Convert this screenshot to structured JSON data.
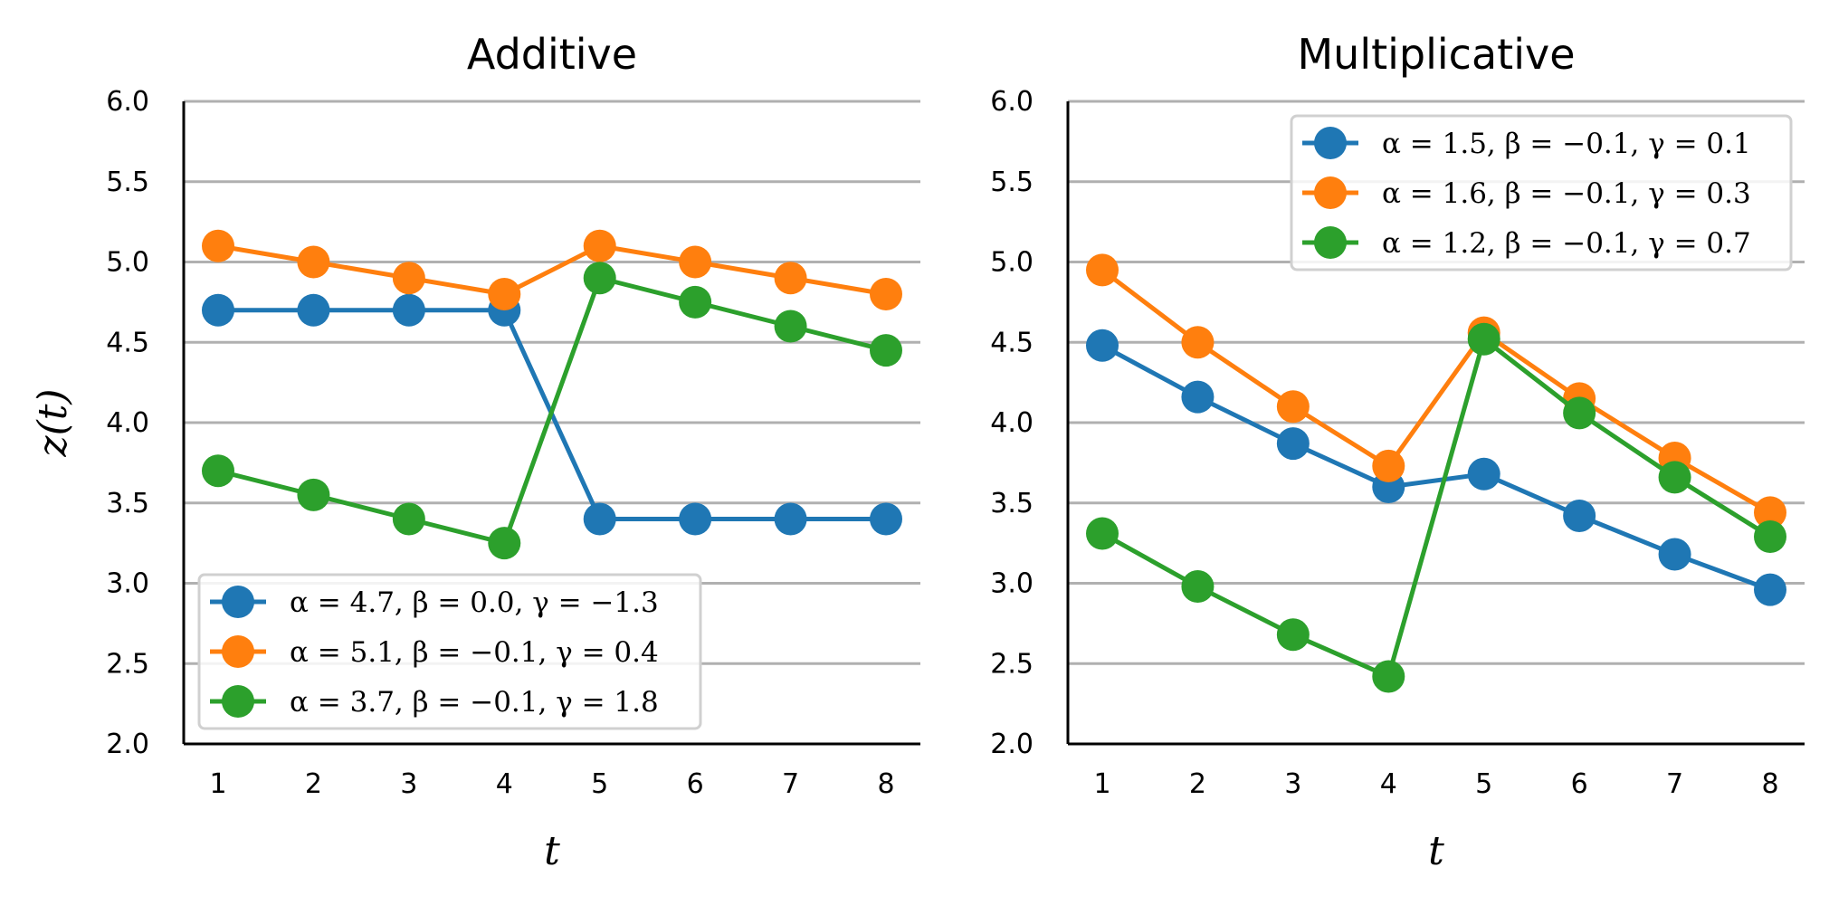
{
  "chart_data": [
    {
      "type": "line",
      "title": "Additive",
      "xlabel": "t",
      "ylabel": "z(t)",
      "x": [
        1,
        2,
        3,
        4,
        5,
        6,
        7,
        8
      ],
      "xticks": [
        "1",
        "2",
        "3",
        "4",
        "5",
        "6",
        "7",
        "8"
      ],
      "ylim": [
        2.0,
        6.0
      ],
      "yticks": [
        "2.0",
        "2.5",
        "3.0",
        "3.5",
        "4.0",
        "4.5",
        "5.0",
        "5.5",
        "6.0"
      ],
      "grid": "horizontal",
      "legend_position": "lower-left",
      "series": [
        {
          "name": "α = 4.7, β = 0.0, γ = −1.3",
          "color": "#1f77b4",
          "values": [
            4.7,
            4.7,
            4.7,
            4.7,
            3.4,
            3.4,
            3.4,
            3.4
          ]
        },
        {
          "name": "α = 5.1, β = −0.1, γ = 0.4",
          "color": "#ff7f0e",
          "values": [
            5.1,
            5.0,
            4.9,
            4.8,
            5.1,
            5.0,
            4.9,
            4.8
          ]
        },
        {
          "name": "α = 3.7, β = −0.1, γ = 1.8",
          "color": "#2ca02c",
          "values": [
            3.7,
            3.55,
            3.4,
            3.25,
            4.9,
            4.75,
            4.6,
            4.45
          ]
        }
      ]
    },
    {
      "type": "line",
      "title": "Multiplicative",
      "xlabel": "t",
      "ylabel": "",
      "x": [
        1,
        2,
        3,
        4,
        5,
        6,
        7,
        8
      ],
      "xticks": [
        "1",
        "2",
        "3",
        "4",
        "5",
        "6",
        "7",
        "8"
      ],
      "ylim": [
        2.0,
        6.0
      ],
      "yticks": [
        "2.0",
        "2.5",
        "3.0",
        "3.5",
        "4.0",
        "4.5",
        "5.0",
        "5.5",
        "6.0"
      ],
      "grid": "horizontal",
      "legend_position": "upper-right",
      "series": [
        {
          "name": "α = 1.5, β = −0.1, γ = 0.1",
          "color": "#1f77b4",
          "values": [
            4.48,
            4.16,
            3.87,
            3.6,
            3.68,
            3.42,
            3.18,
            2.96
          ]
        },
        {
          "name": "α = 1.6, β = −0.1, γ = 0.3",
          "color": "#ff7f0e",
          "values": [
            4.95,
            4.5,
            4.1,
            3.73,
            4.56,
            4.15,
            3.78,
            3.44
          ]
        },
        {
          "name": "α = 1.2, β = −0.1, γ = 0.7",
          "color": "#2ca02c",
          "values": [
            3.31,
            2.98,
            2.68,
            2.42,
            4.52,
            4.06,
            3.66,
            3.29
          ]
        }
      ]
    }
  ]
}
